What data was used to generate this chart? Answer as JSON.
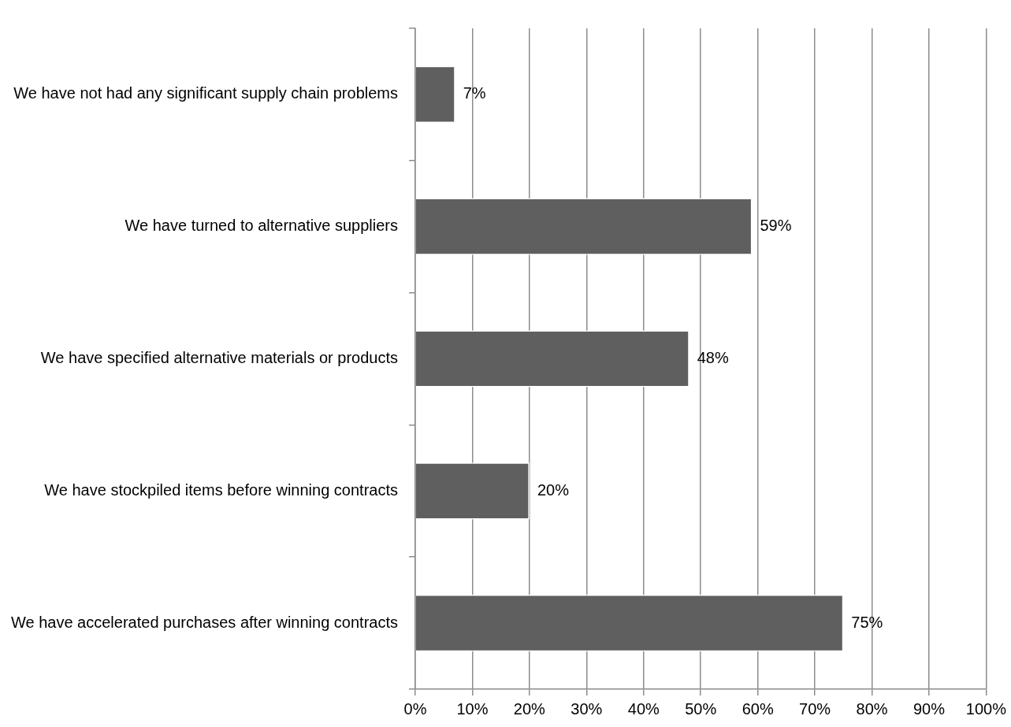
{
  "chart_data": {
    "type": "bar",
    "orientation": "horizontal",
    "categories": [
      "We have not had any significant supply chain problems",
      "We have turned to alternative suppliers",
      "We have specified alternative materials or products",
      "We have stockpiled items before winning contracts",
      "We have accelerated purchases after winning contracts"
    ],
    "values": [
      7,
      59,
      48,
      20,
      75
    ],
    "color": "#5f5f5f",
    "xlim": [
      0,
      100
    ],
    "xticks": [
      {
        "value": 0,
        "label": "0%"
      },
      {
        "value": 10,
        "label": "10%"
      },
      {
        "value": 20,
        "label": "20%"
      },
      {
        "value": 30,
        "label": "30%"
      },
      {
        "value": 40,
        "label": "40%"
      },
      {
        "value": 50,
        "label": "50%"
      },
      {
        "value": 60,
        "label": "60%"
      },
      {
        "value": 70,
        "label": "70%"
      },
      {
        "value": 80,
        "label": "80%"
      },
      {
        "value": 90,
        "label": "90%"
      },
      {
        "value": 100,
        "label": "100%"
      }
    ],
    "value_labels": [
      "7%",
      "59%",
      "48%",
      "20%",
      "75%"
    ],
    "grid": "x",
    "legend": false
  }
}
